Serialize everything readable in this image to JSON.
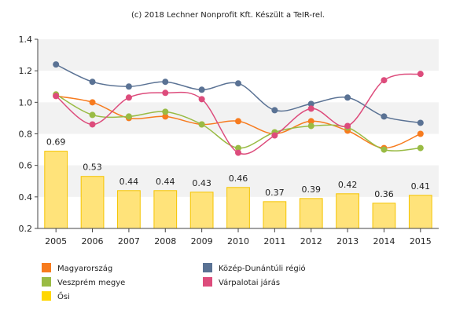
{
  "caption": "(c) 2018 Lechner Nonprofit Kft. Készült a TeIR-rel.",
  "chart_data": {
    "type": "bar+line",
    "categories": [
      "2005",
      "2006",
      "2007",
      "2008",
      "2009",
      "2010",
      "2011",
      "2012",
      "2013",
      "2014",
      "2015"
    ],
    "ylim": [
      0.2,
      1.4
    ],
    "yticks": [
      "0.2",
      "0.4",
      "0.6",
      "0.8",
      "1.0",
      "1.2",
      "1.4"
    ],
    "grid": "horizontal-bands",
    "bars": {
      "name": "Ősi",
      "color": "#ffd700",
      "values": [
        0.69,
        0.53,
        0.44,
        0.44,
        0.43,
        0.46,
        0.37,
        0.39,
        0.42,
        0.36,
        0.41
      ],
      "labels": [
        "0.69",
        "0.53",
        "0.44",
        "0.44",
        "0.43",
        "0.46",
        "0.37",
        "0.39",
        "0.42",
        "0.36",
        "0.41"
      ]
    },
    "series": [
      {
        "name": "Magyarország",
        "color": "#f77b1e",
        "values": [
          1.04,
          1.0,
          0.9,
          0.91,
          0.86,
          0.88,
          0.8,
          0.88,
          0.82,
          0.71,
          0.8
        ]
      },
      {
        "name": "Közép-Dunántúli régió",
        "color": "#5a7294",
        "values": [
          1.24,
          1.13,
          1.1,
          1.13,
          1.08,
          1.12,
          0.95,
          0.99,
          1.03,
          0.91,
          0.87
        ]
      },
      {
        "name": "Veszprém megye",
        "color": "#99bb44",
        "values": [
          1.05,
          0.92,
          0.91,
          0.94,
          0.86,
          0.71,
          0.81,
          0.85,
          0.84,
          0.7,
          0.71
        ]
      },
      {
        "name": "Várpalotai járás",
        "color": "#dd4c7c",
        "values": [
          1.04,
          0.86,
          1.03,
          1.06,
          1.02,
          0.68,
          0.79,
          0.96,
          0.85,
          1.14,
          1.18
        ]
      }
    ],
    "legend": {
      "placement": "bottom",
      "items": [
        {
          "name": "Magyarország",
          "color": "#f77b1e"
        },
        {
          "name": "Közép-Dunántúli régió",
          "color": "#5a7294"
        },
        {
          "name": "Veszprém megye",
          "color": "#99bb44"
        },
        {
          "name": "Várpalotai járás",
          "color": "#dd4c7c"
        },
        {
          "name": "Ősi",
          "color": "#ffd700"
        }
      ]
    }
  }
}
